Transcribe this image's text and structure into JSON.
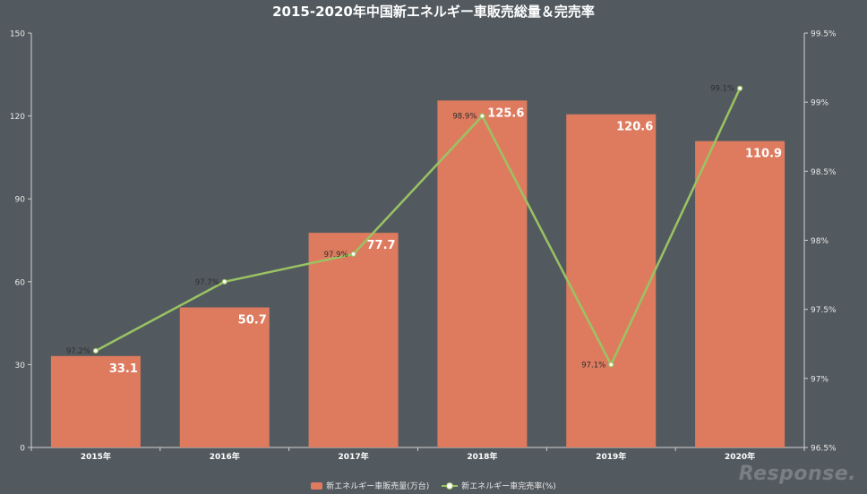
{
  "chart_data": {
    "type": "bar",
    "title": "2015-2020年中国新エネルギー車販売総量＆完売率",
    "categories": [
      "2015年",
      "2016年",
      "2017年",
      "2018年",
      "2019年",
      "2020年"
    ],
    "series": [
      {
        "name": "新エネルギー車販売量(万台)",
        "type": "bar",
        "axis": "left",
        "values": [
          33.1,
          50.7,
          77.7,
          125.6,
          120.6,
          110.9
        ],
        "labels": [
          "33.1",
          "50.7",
          "77.7",
          "125.6",
          "120.6",
          "110.9"
        ],
        "color": "#de7b5f"
      },
      {
        "name": "新エネルギー車完売率(%)",
        "type": "line",
        "axis": "right",
        "values": [
          97.2,
          97.7,
          97.9,
          98.9,
          97.1,
          99.1
        ],
        "labels": [
          "97.2%",
          "97.7%",
          "97.9%",
          "98.9%",
          "97.1%",
          "99.1%"
        ],
        "color": "#9ac363"
      }
    ],
    "y_left": {
      "range": [
        0,
        150
      ],
      "ticks": [
        "0",
        "30",
        "60",
        "90",
        "120",
        "150"
      ]
    },
    "y_right": {
      "range": [
        96.5,
        99.5
      ],
      "ticks": [
        "96.5%",
        "97%",
        "97.5%",
        "98%",
        "98.5%",
        "99%",
        "99.5%"
      ]
    },
    "grid": false,
    "legend_position": "bottom-center"
  },
  "colors": {
    "background": "#535a5f",
    "bar": "#de7b5f",
    "line": "#9ac363"
  },
  "watermark": "Response."
}
